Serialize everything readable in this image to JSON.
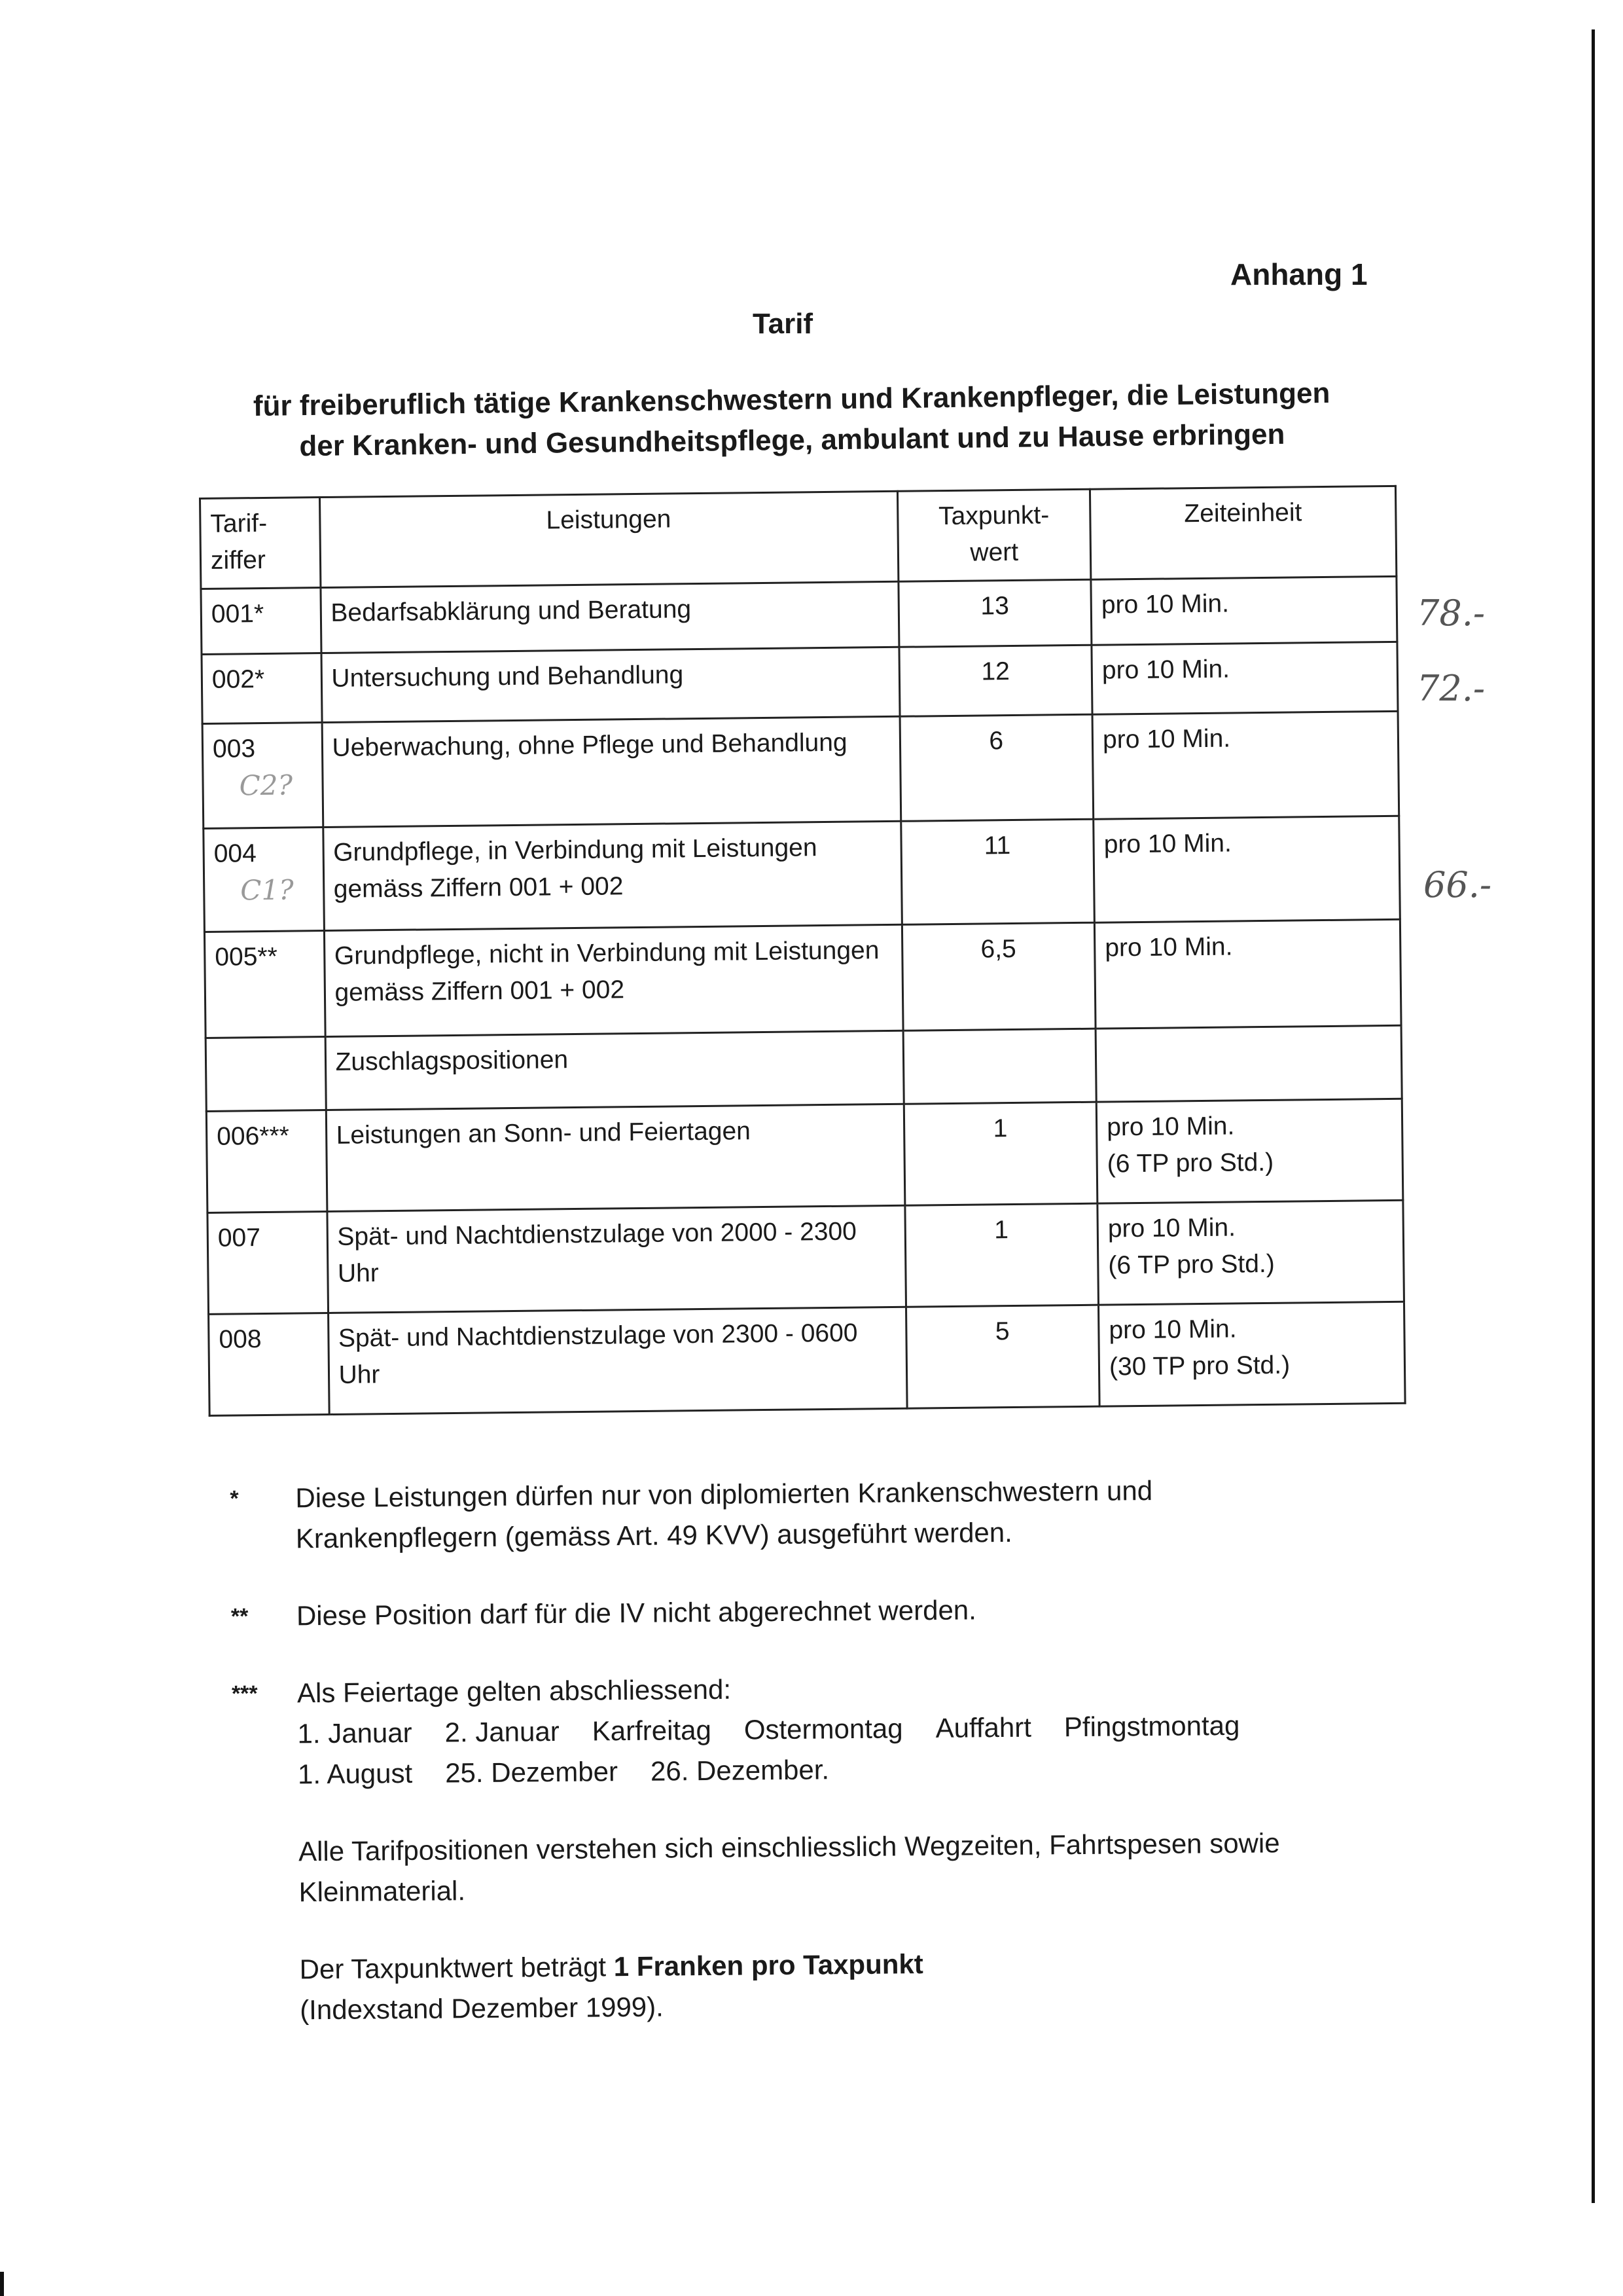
{
  "header": {
    "annex": "Anhang 1",
    "title": "Tarif",
    "subtitle_line1": "für freiberuflich tätige Krankenschwestern und Krankenpfleger, die Leistungen",
    "subtitle_line2": "der Kranken- und Gesundheitspflege, ambulant und zu Hause erbringen"
  },
  "table": {
    "headers": {
      "col1_a": "Tarif-",
      "col1_b": "ziffer",
      "col2": "Leistungen",
      "col3_a": "Taxpunkt-",
      "col3_b": "wert",
      "col4": "Zeiteinheit"
    },
    "rows": [
      {
        "code": "001*",
        "service": "Bedarfsabklärung und Beratung",
        "points": "13",
        "unit": "pro 10 Min.",
        "unit2": "",
        "handnote": "",
        "margin_note": "78.-"
      },
      {
        "code": "002*",
        "service": "Untersuchung und Behandlung",
        "points": "12",
        "unit": "pro 10 Min.",
        "unit2": "",
        "handnote": "",
        "margin_note": "72.-"
      },
      {
        "code": "003",
        "service": "Ueberwachung, ohne Pflege und Behandlung",
        "points": "6",
        "unit": "pro 10 Min.",
        "unit2": "",
        "handnote": "C2?",
        "margin_note": ""
      },
      {
        "code": "004",
        "service": "Grundpflege, in Verbindung mit Leistungen gemäss Ziffern 001 + 002",
        "points": "11",
        "unit": "pro 10 Min.",
        "unit2": "",
        "handnote": "C1?",
        "margin_note": "66.-"
      },
      {
        "code": "005**",
        "service": "Grundpflege, nicht in Verbindung mit Leistungen gemäss Ziffern 001 + 002",
        "points": "6,5",
        "unit": "pro 10 Min.",
        "unit2": "",
        "handnote": "",
        "margin_note": ""
      }
    ],
    "section_label": "Zuschlagspositionen",
    "surcharge_rows": [
      {
        "code": "006***",
        "service": "Leistungen an Sonn- und Feiertagen",
        "points": "1",
        "unit": "pro 10 Min.",
        "unit2": "(6 TP pro Std.)"
      },
      {
        "code": "007",
        "service": "Spät- und Nachtdienstzulage von 2000 - 2300 Uhr",
        "points": "1",
        "unit": "pro 10 Min.",
        "unit2": "(6 TP pro Std.)"
      },
      {
        "code": "008",
        "service": "Spät- und Nachtdienstzulage von 2300 - 0600 Uhr",
        "points": "5",
        "unit": "pro 10 Min.",
        "unit2": "(30 TP pro Std.)"
      }
    ]
  },
  "notes": {
    "n1_mark": "*",
    "n1_text": "Diese Leistungen dürfen nur von diplomierten Krankenschwestern und Krankenpflegern (gemäss Art. 49 KVV) ausgeführt werden.",
    "n2_mark": "**",
    "n2_text": "Diese Position darf für die IV nicht abgerechnet werden.",
    "n3_mark": "***",
    "n3_text": "Als Feiertage gelten abschliessend:",
    "holidays_line1": [
      "1. Januar",
      "2. Januar",
      "Karfreitag",
      "Ostermontag",
      "Auffahrt",
      "Pfingstmontag"
    ],
    "holidays_line2": [
      "1. August",
      "25. Dezember",
      "26. Dezember."
    ],
    "para1": "Alle Tarifpositionen verstehen sich einschliesslich Wegzeiten, Fahrtspesen sowie Kleinmaterial.",
    "para2_prefix": "Der Taxpunktwert beträgt ",
    "para2_bold": "1 Franken pro Taxpunkt",
    "para2_suffix": "(Indexstand Dezember 1999)."
  }
}
